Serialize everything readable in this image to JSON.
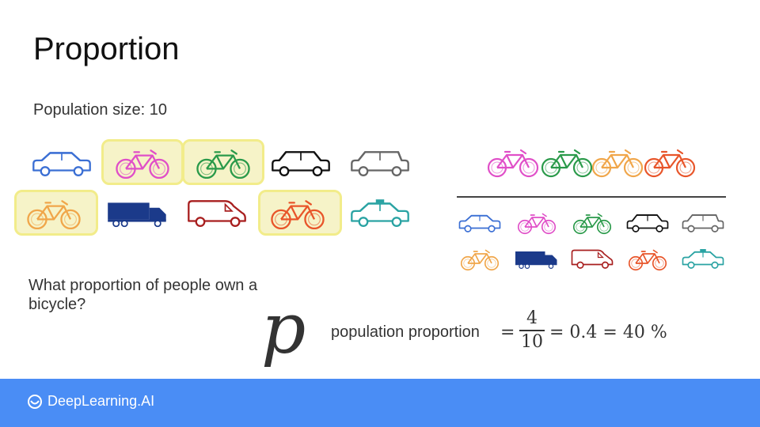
{
  "slide": {
    "title": "Proportion",
    "population_label": "Population size: 10",
    "question": "What proportion of people own a bicycle?",
    "p_symbol": "p",
    "pp_label": "population proportion",
    "formula": {
      "eq1": "=",
      "numerator": "4",
      "denominator": "10",
      "rest": "= 0.4 = 40 %"
    }
  },
  "footer": {
    "brand": "DeepLearning.AI",
    "background": "#4a8df5"
  },
  "population_row1": [
    {
      "icon": "car-icon",
      "color": "#3b6fd4"
    },
    {
      "icon": "bicycle-icon",
      "color": "#e04fc8",
      "highlighted": true
    },
    {
      "icon": "bicycle-icon",
      "color": "#2a9a4a",
      "highlighted": true
    },
    {
      "icon": "suv-icon",
      "color": "#111111"
    },
    {
      "icon": "wagon-icon",
      "color": "#666666"
    }
  ],
  "population_row2": [
    {
      "icon": "bicycle-icon",
      "color": "#f0a64a",
      "highlighted": true
    },
    {
      "icon": "truck-icon",
      "color": "#1b3a8a"
    },
    {
      "icon": "van-icon",
      "color": "#a81f1f"
    },
    {
      "icon": "bicycle-icon",
      "color": "#e8552a",
      "highlighted": true
    },
    {
      "icon": "taxi-icon",
      "color": "#2aa3a3"
    }
  ],
  "numerator_bikes": [
    {
      "icon": "bicycle-icon",
      "color": "#e04fc8"
    },
    {
      "icon": "bicycle-icon",
      "color": "#2a9a4a"
    },
    {
      "icon": "bicycle-icon",
      "color": "#f0a64a"
    },
    {
      "icon": "bicycle-icon",
      "color": "#e8552a"
    }
  ],
  "highlight_color": "#f2ec8a"
}
